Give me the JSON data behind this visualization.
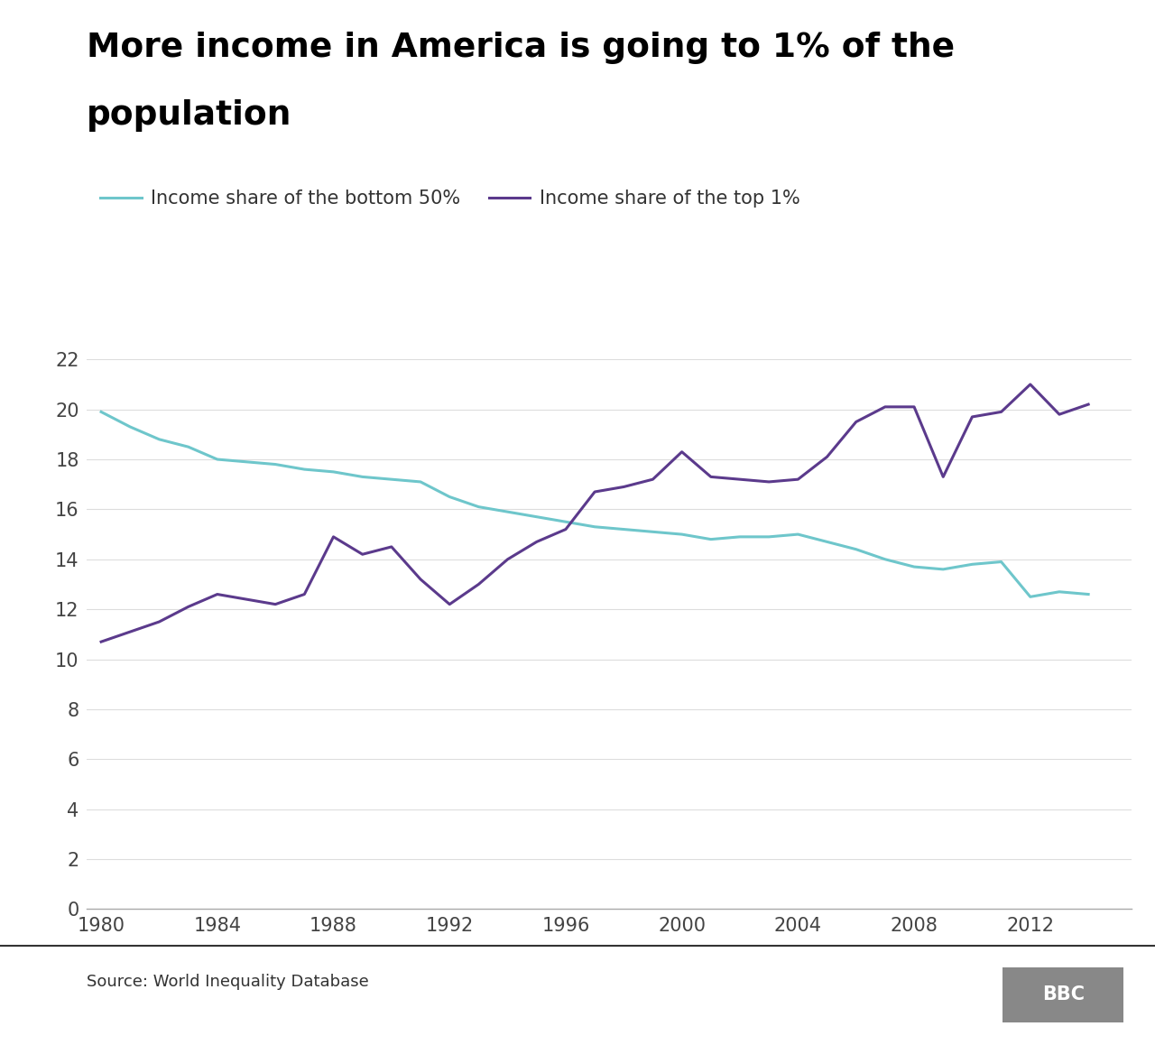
{
  "title_line1": "More income in America is going to 1% of the",
  "title_line2": "population",
  "source": "Source: World Inequality Database",
  "legend_bottom50": "Income share of the bottom 50%",
  "legend_top1": "Income share of the top 1%",
  "color_bottom50": "#6ec6cb",
  "color_top1": "#5b3a8c",
  "background_color": "#ffffff",
  "xlim": [
    1979.5,
    2015.5
  ],
  "ylim": [
    0,
    23
  ],
  "yticks": [
    0,
    2,
    4,
    6,
    8,
    10,
    12,
    14,
    16,
    18,
    20,
    22
  ],
  "xticks": [
    1980,
    1984,
    1988,
    1992,
    1996,
    2000,
    2004,
    2008,
    2012
  ],
  "bottom50_years": [
    1980,
    1981,
    1982,
    1983,
    1984,
    1985,
    1986,
    1987,
    1988,
    1989,
    1990,
    1991,
    1992,
    1993,
    1994,
    1995,
    1996,
    1997,
    1998,
    1999,
    2000,
    2001,
    2002,
    2003,
    2004,
    2005,
    2006,
    2007,
    2008,
    2009,
    2010,
    2011,
    2012,
    2013,
    2014
  ],
  "bottom50_values": [
    19.9,
    19.3,
    18.8,
    18.5,
    18.0,
    17.9,
    17.8,
    17.6,
    17.5,
    17.3,
    17.2,
    17.1,
    16.5,
    16.1,
    15.9,
    15.7,
    15.5,
    15.3,
    15.2,
    15.1,
    15.0,
    14.8,
    14.9,
    14.9,
    15.0,
    14.7,
    14.4,
    14.0,
    13.7,
    13.6,
    13.8,
    13.9,
    12.5,
    12.7,
    12.6
  ],
  "top1_years": [
    1980,
    1981,
    1982,
    1983,
    1984,
    1985,
    1986,
    1987,
    1988,
    1989,
    1990,
    1991,
    1992,
    1993,
    1994,
    1995,
    1996,
    1997,
    1998,
    1999,
    2000,
    2001,
    2002,
    2003,
    2004,
    2005,
    2006,
    2007,
    2008,
    2009,
    2010,
    2011,
    2012,
    2013,
    2014
  ],
  "top1_values": [
    10.7,
    11.1,
    11.5,
    12.1,
    12.6,
    12.4,
    12.2,
    12.6,
    14.9,
    14.2,
    14.5,
    13.2,
    12.2,
    13.0,
    14.0,
    14.7,
    15.2,
    16.7,
    16.9,
    17.2,
    18.3,
    17.3,
    17.2,
    17.1,
    17.2,
    18.1,
    19.5,
    20.1,
    20.1,
    17.3,
    19.7,
    19.9,
    21.0,
    19.8,
    20.2
  ]
}
